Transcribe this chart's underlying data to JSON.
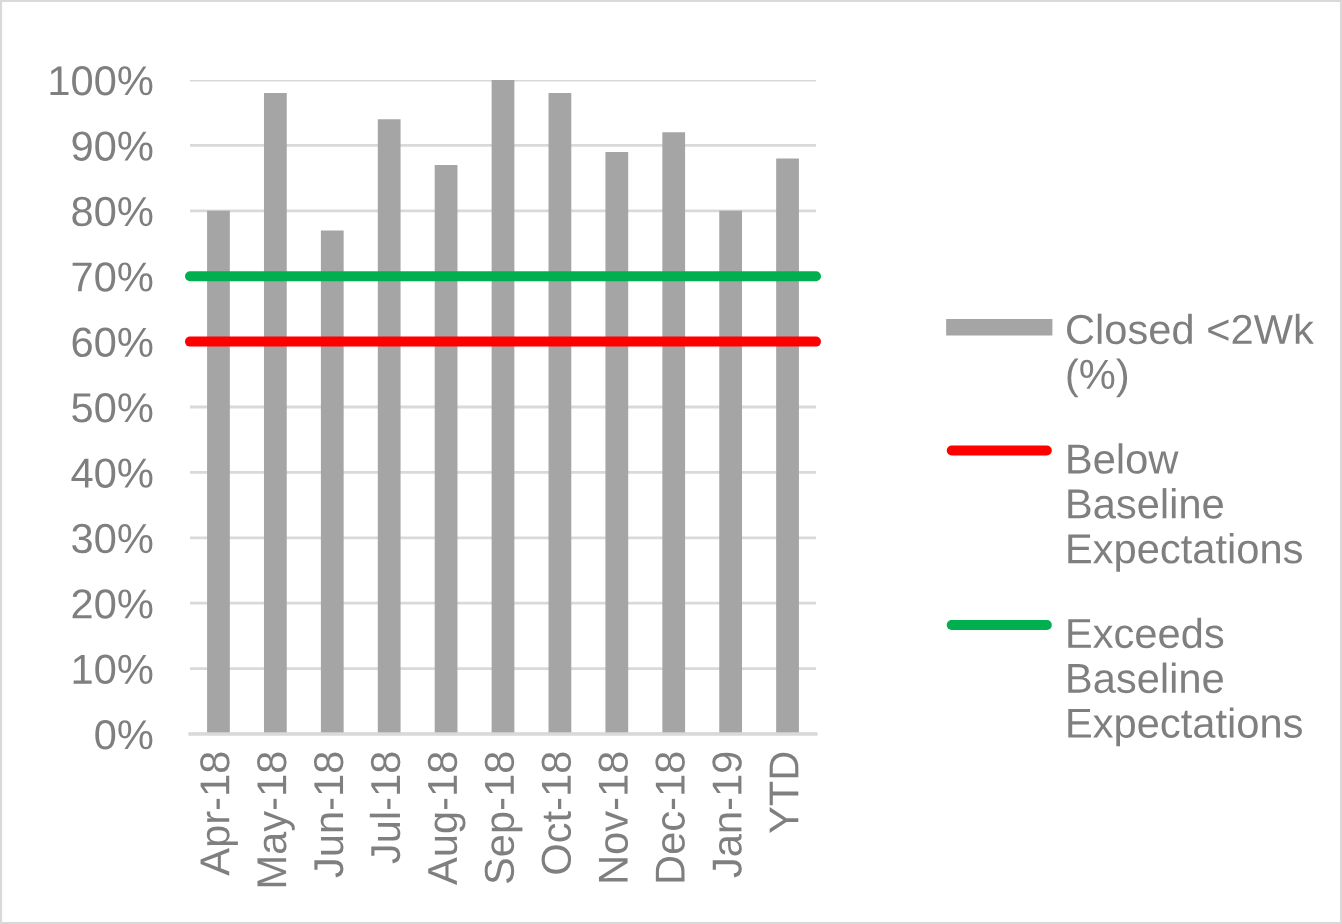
{
  "chart_data": {
    "type": "bar",
    "categories": [
      "Apr-18",
      "May-18",
      "Jun-18",
      "Jul-18",
      "Aug-18",
      "Sep-18",
      "Oct-18",
      "Nov-18",
      "Dec-18",
      "Jan-19",
      "YTD"
    ],
    "series": [
      {
        "name": "Closed <2Wk\n(%)",
        "color": "#a5a5a5",
        "values": [
          80,
          98,
          77,
          94,
          87,
          100,
          98,
          89,
          92,
          80,
          88
        ]
      }
    ],
    "ylim": [
      0,
      100
    ],
    "yticks": [
      {
        "value": 0,
        "label": "0%"
      },
      {
        "value": 10,
        "label": "10%"
      },
      {
        "value": 20,
        "label": "20%"
      },
      {
        "value": 30,
        "label": "30%"
      },
      {
        "value": 40,
        "label": "40%"
      },
      {
        "value": 50,
        "label": "50%"
      },
      {
        "value": 60,
        "label": "60%"
      },
      {
        "value": 70,
        "label": "70%"
      },
      {
        "value": 80,
        "label": "80%"
      },
      {
        "value": 90,
        "label": "90%"
      },
      {
        "value": 100,
        "label": "100%"
      }
    ],
    "grid": "y",
    "legend": "right",
    "ref_lines": [
      {
        "axis": "y",
        "value": 60,
        "label": "Below\nBaseline\nExpectations",
        "color": "#ff0000"
      },
      {
        "axis": "y",
        "value": 70,
        "label": "Exceeds\nBaseline\nExpectations",
        "color": "#00b050"
      }
    ]
  }
}
